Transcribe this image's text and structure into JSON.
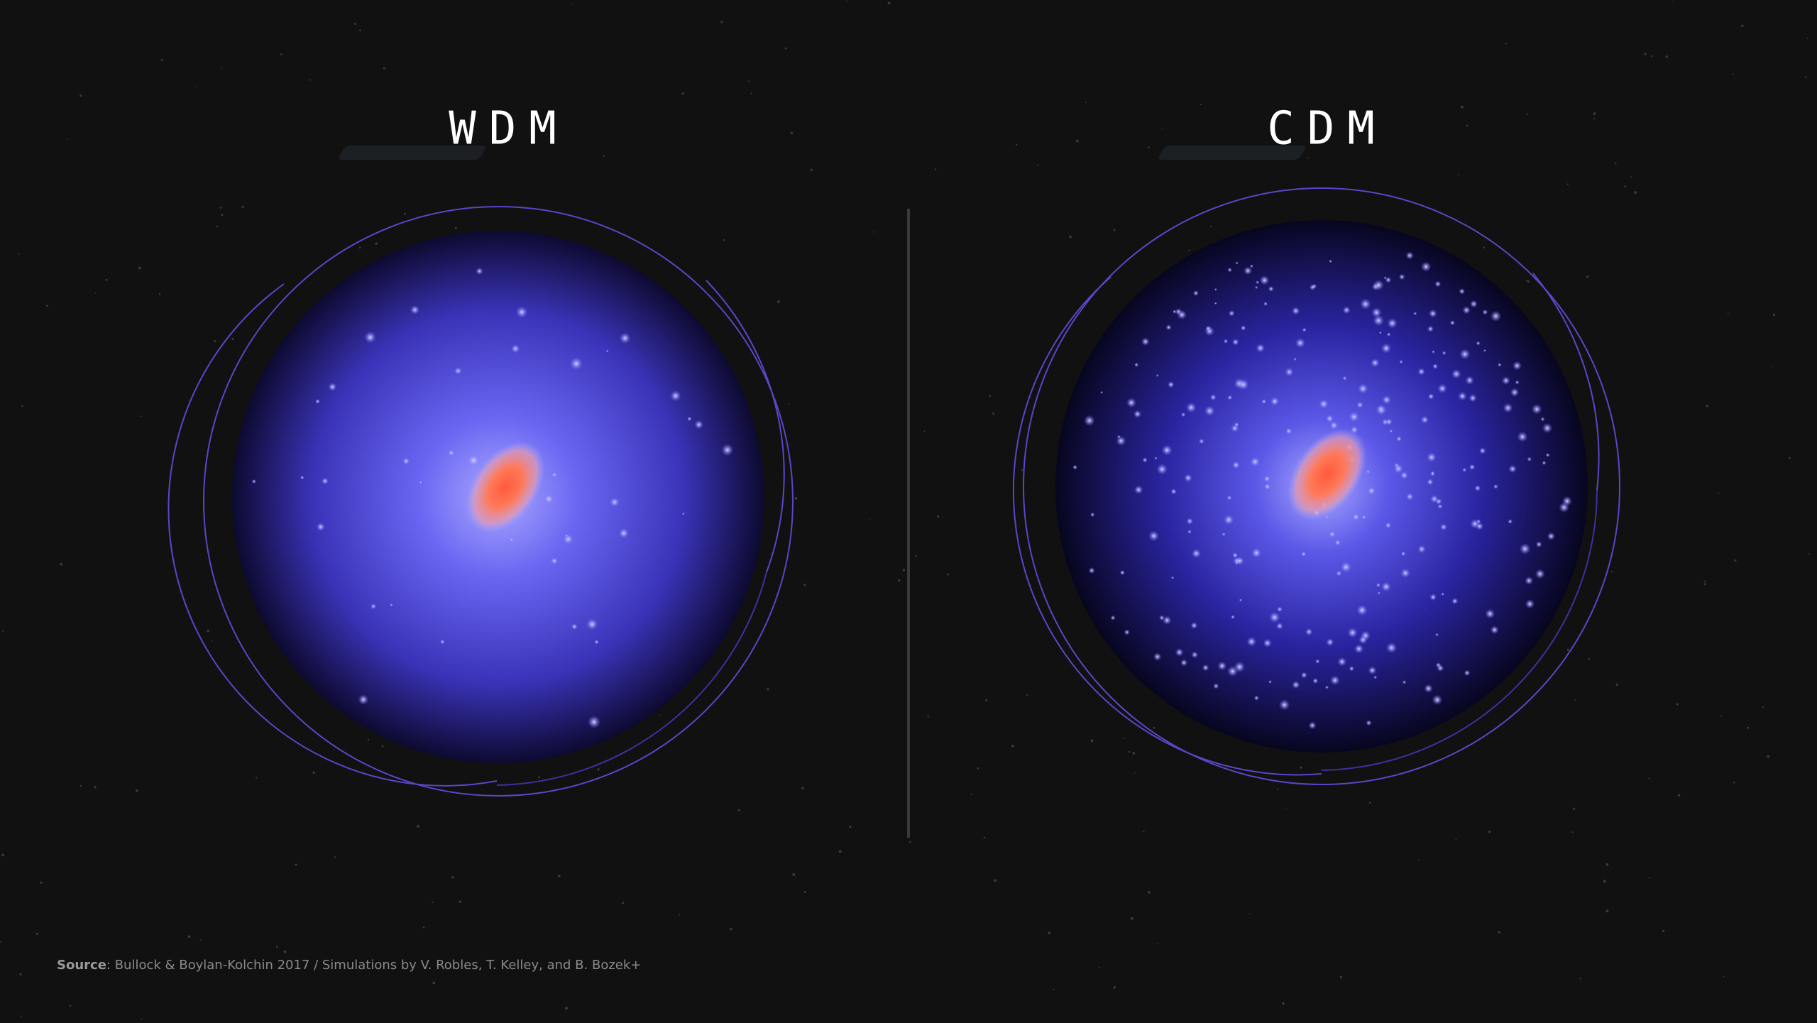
{
  "panels": [
    {
      "title": "WDM"
    },
    {
      "title": "CDM"
    }
  ],
  "source": {
    "label": "Source",
    "text": ": Bullock & Boylan-Kolchin 2017 / Simulations by V. Robles, T. Kelley, and B. Bozek+"
  }
}
